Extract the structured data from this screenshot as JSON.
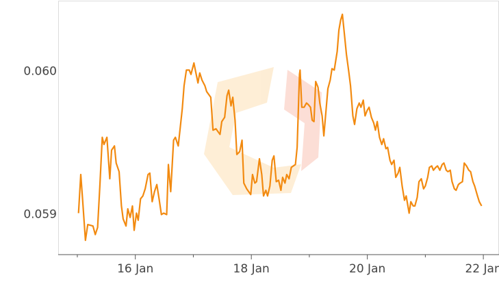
{
  "chart_data": {
    "type": "line",
    "x": [
      15.02,
      15.06,
      15.09,
      15.14,
      15.18,
      15.27,
      15.31,
      15.35,
      15.39,
      15.43,
      15.46,
      15.51,
      15.56,
      15.59,
      15.64,
      15.67,
      15.72,
      15.76,
      15.79,
      15.84,
      15.87,
      15.91,
      15.95,
      15.98,
      16.02,
      16.05,
      16.09,
      16.13,
      16.17,
      16.22,
      16.25,
      16.29,
      16.33,
      16.37,
      16.41,
      16.45,
      16.49,
      16.54,
      16.57,
      16.61,
      16.66,
      16.69,
      16.74,
      16.77,
      16.81,
      16.84,
      16.88,
      16.93,
      16.96,
      17.01,
      17.04,
      17.08,
      17.11,
      17.15,
      17.2,
      17.23,
      17.3,
      17.34,
      17.39,
      17.46,
      17.49,
      17.54,
      17.58,
      17.61,
      17.65,
      17.68,
      17.72,
      17.75,
      17.8,
      17.84,
      17.87,
      17.92,
      17.99,
      18.02,
      18.06,
      18.09,
      18.14,
      18.18,
      18.21,
      18.25,
      18.28,
      18.32,
      18.36,
      18.39,
      18.43,
      18.47,
      18.51,
      18.54,
      18.58,
      18.61,
      18.65,
      18.69,
      18.76,
      18.79,
      18.83,
      18.84,
      18.87,
      18.91,
      18.95,
      18.98,
      19.02,
      19.05,
      19.08,
      19.11,
      19.15,
      19.18,
      19.22,
      19.25,
      19.29,
      19.32,
      19.36,
      19.39,
      19.43,
      19.48,
      19.51,
      19.54,
      19.57,
      19.61,
      19.64,
      19.68,
      19.71,
      19.75,
      19.78,
      19.82,
      19.86,
      19.89,
      19.93,
      19.96,
      20.0,
      20.03,
      20.07,
      20.11,
      20.14,
      20.17,
      20.21,
      20.25,
      20.28,
      20.32,
      20.35,
      20.39,
      20.42,
      20.46,
      20.49,
      20.53,
      20.56,
      20.6,
      20.64,
      20.67,
      20.72,
      20.75,
      20.79,
      20.82,
      20.86,
      20.89,
      20.93,
      20.97,
      21.0,
      21.04,
      21.07,
      21.11,
      21.14,
      21.18,
      21.21,
      21.25,
      21.29,
      21.32,
      21.36,
      21.39,
      21.43,
      21.46,
      21.5,
      21.53,
      21.57,
      21.6,
      21.64,
      21.67,
      21.71,
      21.75,
      21.78,
      21.82,
      21.85,
      21.9,
      21.93,
      21.97
    ],
    "series": [
      {
        "color": "#f28a10",
        "values": [
          0.05901,
          0.05928,
          0.05911,
          0.05882,
          0.05893,
          0.05892,
          0.05886,
          0.05891,
          0.05921,
          0.05954,
          0.05949,
          0.05954,
          0.05925,
          0.05945,
          0.05948,
          0.05936,
          0.0593,
          0.05906,
          0.05897,
          0.05892,
          0.05904,
          0.05898,
          0.05906,
          0.05889,
          0.05901,
          0.05896,
          0.05911,
          0.05913,
          0.05918,
          0.05928,
          0.05929,
          0.05909,
          0.05916,
          0.05921,
          0.05911,
          0.059,
          0.05901,
          0.059,
          0.05935,
          0.05916,
          0.05952,
          0.05954,
          0.05948,
          0.05959,
          0.05974,
          0.0599,
          0.06001,
          0.06001,
          0.05998,
          0.06006,
          0.06,
          0.05992,
          0.05999,
          0.05994,
          0.0599,
          0.05986,
          0.05982,
          0.05959,
          0.0596,
          0.05956,
          0.05965,
          0.05968,
          0.05983,
          0.05987,
          0.05976,
          0.05982,
          0.05966,
          0.05942,
          0.05944,
          0.05952,
          0.05922,
          0.05918,
          0.05914,
          0.05928,
          0.05922,
          0.05923,
          0.05939,
          0.05928,
          0.05913,
          0.05917,
          0.05913,
          0.0592,
          0.05938,
          0.05941,
          0.05923,
          0.05924,
          0.05917,
          0.05926,
          0.05922,
          0.05928,
          0.05925,
          0.05933,
          0.05935,
          0.05947,
          0.05998,
          0.06001,
          0.05975,
          0.05975,
          0.05978,
          0.05977,
          0.05975,
          0.05966,
          0.05965,
          0.05993,
          0.05989,
          0.05978,
          0.05969,
          0.05955,
          0.05974,
          0.05988,
          0.05994,
          0.06002,
          0.06001,
          0.06014,
          0.06029,
          0.06036,
          0.0604,
          0.06024,
          0.06012,
          0.06,
          0.0599,
          0.05969,
          0.05963,
          0.05974,
          0.05978,
          0.05975,
          0.0598,
          0.05969,
          0.05973,
          0.05975,
          0.05968,
          0.05964,
          0.05959,
          0.05965,
          0.05954,
          0.05949,
          0.05953,
          0.05946,
          0.05947,
          0.05938,
          0.05935,
          0.05938,
          0.05926,
          0.05929,
          0.05933,
          0.0592,
          0.0591,
          0.05913,
          0.05901,
          0.05909,
          0.05906,
          0.05906,
          0.05912,
          0.05923,
          0.05925,
          0.05918,
          0.0592,
          0.05926,
          0.05933,
          0.05934,
          0.05931,
          0.05933,
          0.05934,
          0.05931,
          0.05935,
          0.05936,
          0.05931,
          0.0593,
          0.05931,
          0.05923,
          0.05918,
          0.05917,
          0.05921,
          0.05922,
          0.05923,
          0.05936,
          0.05934,
          0.05931,
          0.0593,
          0.05923,
          0.0592,
          0.05913,
          0.05909,
          0.05906
        ]
      }
    ],
    "xlim": [
      14.67,
      22.27
    ],
    "xticks": [
      {
        "value": 16,
        "label": "16 Jan"
      },
      {
        "value": 18,
        "label": "18 Jan"
      },
      {
        "value": 20,
        "label": "20 Jan"
      },
      {
        "value": 22,
        "label": "22 Jan"
      }
    ],
    "xminorticks": [
      15,
      17,
      19,
      21
    ],
    "ylim": [
      0.05872,
      0.0605
    ],
    "yticks": [
      0.059,
      {
        "value": 0.06,
        "label": "0.060"
      }
    ]
  }
}
